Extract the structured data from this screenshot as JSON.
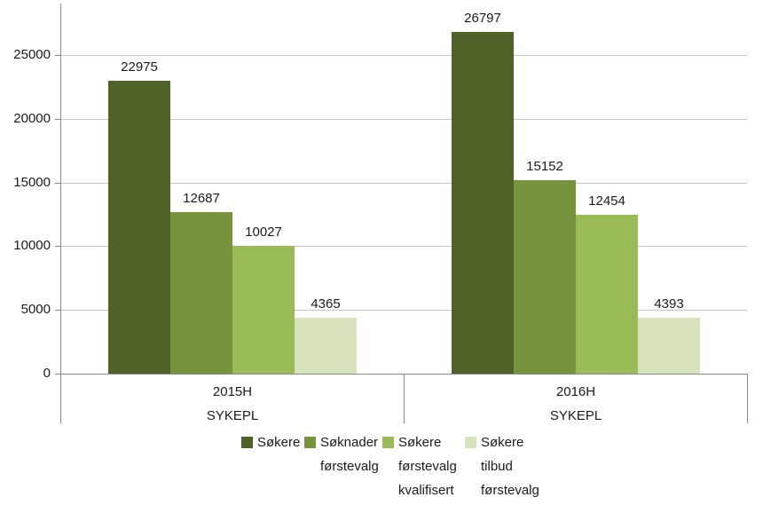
{
  "chart_data": {
    "type": "bar",
    "title": "",
    "xlabel": "",
    "ylabel": "",
    "y_axis": {
      "ticks": [
        0,
        5000,
        10000,
        15000,
        20000,
        25000
      ],
      "ylim": [
        0,
        29300
      ],
      "grid": "horizontal"
    },
    "legend_position": "bottom",
    "series": [
      {
        "name": "Søkere",
        "legend_lines": [
          "Søkere"
        ],
        "color": "#4F6228"
      },
      {
        "name": "Søknader førstevalg",
        "legend_lines": [
          "Søknader",
          "førstevalg"
        ],
        "color": "#77933C"
      },
      {
        "name": "Søkere førstevalg kvalifisert",
        "legend_lines": [
          "Søkere",
          "førstevalg",
          "kvalifisert"
        ],
        "color": "#9BBB59"
      },
      {
        "name": "Søkere tilbud førstevalg",
        "legend_lines": [
          "Søkere",
          "tilbud",
          "førstevalg"
        ],
        "color": "#D6E3BC"
      }
    ],
    "groups": [
      {
        "period": "2015H",
        "program": "SYKEPL",
        "values": [
          22975,
          12687,
          10027,
          4365
        ]
      },
      {
        "period": "2016H",
        "program": "SYKEPL",
        "values": [
          26797,
          15152,
          12454,
          4393
        ]
      }
    ],
    "colors": {
      "gridline": "#C6C6C6",
      "axis": "#8A8A8A",
      "text": "#1A1A1A",
      "background": "#FFFFFF"
    }
  }
}
